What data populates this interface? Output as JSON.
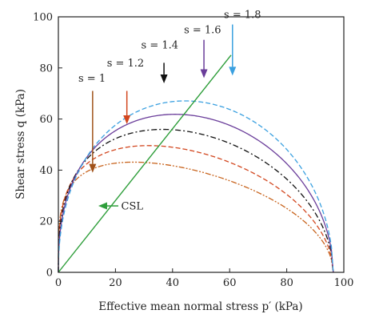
{
  "chart_data": {
    "type": "line",
    "title": "",
    "xlabel": "Effective mean normal stress p′ (kPa)",
    "ylabel": "Shear stress q (kPa)",
    "xlim": [
      0,
      100
    ],
    "ylim": [
      0,
      100
    ],
    "xticks": [
      "0",
      "20",
      "40",
      "60",
      "80",
      "100"
    ],
    "yticks": [
      "0",
      "20",
      "40",
      "60",
      "80",
      "100"
    ],
    "grid": false,
    "csl": {
      "label": "CSL",
      "x": [
        0,
        60.5
      ],
      "y": [
        0,
        85
      ],
      "color": "#2e9e3a"
    },
    "series": [
      {
        "name": "s = 1",
        "color": "#c8641e",
        "dash": "dashdotdot",
        "x_end": 96.3,
        "peak_x": 27,
        "peak_q": 39.0
      },
      {
        "name": "s = 1.2",
        "color": "#d2461e",
        "dash": "dash",
        "x_end": 96.3,
        "peak_x": 33,
        "peak_q": 47.5
      },
      {
        "name": "s = 1.4",
        "color": "#111111",
        "dash": "dashdot",
        "x_end": 96.3,
        "peak_x": 38,
        "peak_q": 55.0
      },
      {
        "name": "s = 1.6",
        "color": "#6a3d9a",
        "dash": "solid",
        "x_end": 96.3,
        "peak_x": 42,
        "peak_q": 61.5
      },
      {
        "name": "s = 1.8",
        "color": "#3aa0e0",
        "dash": "dash",
        "x_end": 96.3,
        "peak_x": 45,
        "peak_q": 67.0
      }
    ],
    "annotations": [
      {
        "label": "s = 1",
        "color": "#a0521a",
        "text_x": 7,
        "text_y": 76,
        "arrow_from": [
          12,
          71
        ],
        "arrow_to": [
          12,
          39
        ]
      },
      {
        "label": "s = 1.2",
        "color": "#d2461e",
        "text_x": 17,
        "text_y": 82,
        "arrow_from": [
          24,
          71
        ],
        "arrow_to": [
          24,
          58
        ]
      },
      {
        "label": "s = 1.4",
        "color": "#111111",
        "text_x": 29,
        "text_y": 89,
        "arrow_from": [
          37,
          82
        ],
        "arrow_to": [
          37,
          74
        ]
      },
      {
        "label": "s = 1.6",
        "color": "#6a3d9a",
        "text_x": 44,
        "text_y": 95,
        "arrow_from": [
          51,
          91
        ],
        "arrow_to": [
          51,
          76
        ]
      },
      {
        "label": "s = 1.8",
        "color": "#3aa0e0",
        "text_x": 58,
        "text_y": 101,
        "arrow_from": [
          61,
          97
        ],
        "arrow_to": [
          61,
          77
        ]
      },
      {
        "label": "CSL",
        "color": "#2e9e3a",
        "text_x": 22,
        "text_y": 26,
        "arrow_from": [
          21,
          26
        ],
        "arrow_to": [
          14,
          26
        ]
      }
    ]
  }
}
